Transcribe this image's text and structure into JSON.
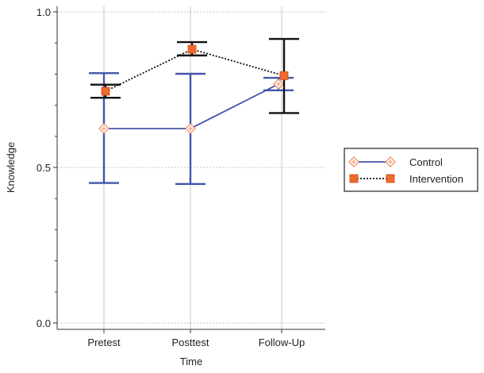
{
  "chart_data": {
    "type": "line",
    "title": "",
    "xlabel": "Time",
    "ylabel": "Knowledge",
    "categories": [
      "Pretest",
      "Posttest",
      "Follow-Up"
    ],
    "ylim": [
      0.0,
      1.0
    ],
    "y_ticks": [
      0.0,
      0.5,
      1.0
    ],
    "y_tick_labels": [
      "0.0",
      "0.5",
      "1.0"
    ],
    "grid": true,
    "legend_position": "right",
    "series": [
      {
        "name": "Control",
        "values": [
          0.625,
          0.625,
          0.768
        ],
        "error_low": [
          0.45,
          0.447,
          0.748
        ],
        "error_high": [
          0.803,
          0.801,
          0.788
        ],
        "color": "#4455aa",
        "marker": "diamond",
        "marker_color": "#f08a5d",
        "line_style": "solid"
      },
      {
        "name": "Intervention",
        "values": [
          0.745,
          0.88,
          0.795
        ],
        "error_low": [
          0.724,
          0.86,
          0.675
        ],
        "error_high": [
          0.766,
          0.903,
          0.913
        ],
        "color": "#111111",
        "marker": "square",
        "marker_color": "#ee6a2c",
        "line_style": "dotted"
      }
    ]
  }
}
